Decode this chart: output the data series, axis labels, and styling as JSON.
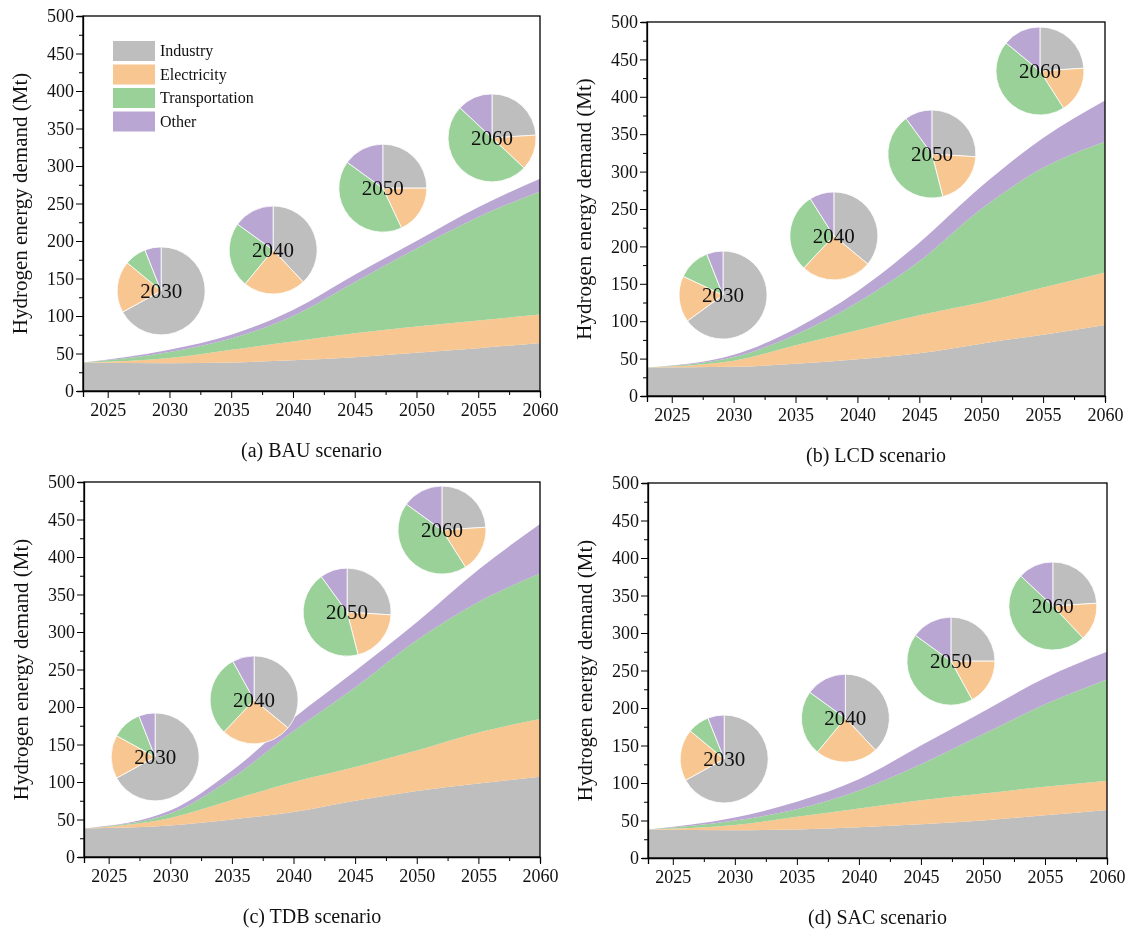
{
  "chart_data": [
    {
      "type": "area",
      "stacked": true,
      "title": "(a) BAU scenario",
      "ylabel": "Hydrogen energy demand (Mt)",
      "legend": "top left",
      "x": [
        2023,
        2030,
        2035,
        2040,
        2045,
        2050,
        2055,
        2060
      ],
      "xlim": [
        2023,
        2060
      ],
      "xticks": [
        2025,
        {
          "value": 2027.5,
          "label": null
        },
        2030,
        {
          "value": 2032.5,
          "label": null
        },
        2035,
        {
          "value": 2037.5,
          "label": null
        },
        2040,
        {
          "value": 2042.5,
          "label": null
        },
        2045,
        {
          "value": 2047.5,
          "label": null
        },
        2050,
        {
          "value": 2052.5,
          "label": null
        },
        2055,
        {
          "value": 2057.5,
          "label": null
        },
        2060
      ],
      "ylim": [
        0,
        500
      ],
      "yticks": [
        0,
        {
          "value": 25,
          "label": null
        },
        50,
        {
          "value": 75,
          "label": null
        },
        100,
        {
          "value": 125,
          "label": null
        },
        150,
        {
          "value": 175,
          "label": null
        },
        200,
        {
          "value": 225,
          "label": null
        },
        250,
        {
          "value": 275,
          "label": null
        },
        300,
        {
          "value": 325,
          "label": null
        },
        350,
        {
          "value": 375,
          "label": null
        },
        400,
        {
          "value": 425,
          "label": null
        },
        450,
        {
          "value": 475,
          "label": null
        },
        500
      ],
      "series": [
        {
          "name": "Industry",
          "color": "#bebebe",
          "values": [
            38,
            37,
            38,
            41,
            45,
            51,
            57,
            64
          ]
        },
        {
          "name": "Electricity",
          "color": "#f8c690",
          "values": [
            0,
            7,
            17,
            25,
            32,
            35,
            37,
            38
          ]
        },
        {
          "name": "Transportation",
          "color": "#99d198",
          "values": [
            0,
            8,
            15,
            34,
            68,
            104,
            138,
            164
          ]
        },
        {
          "name": "Other",
          "color": "#baa6d2",
          "values": [
            0,
            3,
            5,
            8,
            10,
            10,
            13,
            17
          ]
        }
      ]
    },
    {
      "type": "pie",
      "title": "2030",
      "categories": [
        null,
        null,
        null,
        null
      ],
      "values": [
        67,
        19,
        8,
        6
      ],
      "colors": [
        "#bebebe",
        "#f8c690",
        "#99d198",
        "#baa6d2"
      ]
    },
    {
      "type": "pie",
      "title": "2040",
      "categories": [
        null,
        null,
        null,
        null
      ],
      "values": [
        38,
        23,
        24,
        15
      ],
      "colors": [
        "#bebebe",
        "#f8c690",
        "#99d198",
        "#baa6d2"
      ]
    },
    {
      "type": "pie",
      "title": "2050",
      "categories": [
        null,
        null,
        null,
        null
      ],
      "values": [
        25,
        18,
        42,
        15
      ],
      "colors": [
        "#bebebe",
        "#f8c690",
        "#99d198",
        "#baa6d2"
      ]
    },
    {
      "type": "pie",
      "title": "2060",
      "categories": [
        null,
        null,
        null,
        null
      ],
      "values": [
        24,
        13,
        50,
        13
      ],
      "colors": [
        "#bebebe",
        "#f8c690",
        "#99d198",
        "#baa6d2"
      ]
    },
    {
      "type": "area",
      "stacked": true,
      "title": "(b) LCD scenario",
      "ylabel": "Hydrogen energy demand (Mt)",
      "x": [
        2023,
        2030,
        2035,
        2040,
        2045,
        2050,
        2055,
        2060
      ],
      "xlim": [
        2023,
        2060
      ],
      "xticks": [
        2025,
        {
          "value": 2027.5,
          "label": null
        },
        2030,
        {
          "value": 2032.5,
          "label": null
        },
        2035,
        {
          "value": 2037.5,
          "label": null
        },
        2040,
        {
          "value": 2042.5,
          "label": null
        },
        2045,
        {
          "value": 2047.5,
          "label": null
        },
        2050,
        {
          "value": 2052.5,
          "label": null
        },
        2055,
        {
          "value": 2057.5,
          "label": null
        },
        2060
      ],
      "ylim": [
        0,
        500
      ],
      "yticks": [
        0,
        {
          "value": 25,
          "label": null
        },
        50,
        {
          "value": 75,
          "label": null
        },
        100,
        {
          "value": 125,
          "label": null
        },
        150,
        {
          "value": 175,
          "label": null
        },
        200,
        {
          "value": 225,
          "label": null
        },
        250,
        {
          "value": 275,
          "label": null
        },
        300,
        {
          "value": 325,
          "label": null
        },
        350,
        {
          "value": 375,
          "label": null
        },
        400,
        {
          "value": 425,
          "label": null
        },
        450,
        {
          "value": 475,
          "label": null
        },
        500
      ],
      "series": [
        {
          "color": "#bebebe",
          "values": [
            38,
            39,
            43,
            49,
            57,
            70,
            82,
            95
          ]
        },
        {
          "color": "#f8c690",
          "values": [
            0,
            8,
            25,
            39,
            51,
            55,
            63,
            70
          ]
        },
        {
          "color": "#99d198",
          "values": [
            0,
            5,
            14,
            37,
            72,
            125,
            160,
            175
          ]
        },
        {
          "color": "#baa6d2",
          "values": [
            0,
            3,
            8,
            15,
            25,
            30,
            40,
            55
          ]
        }
      ]
    },
    {
      "type": "pie",
      "title": "2030",
      "categories": [
        null,
        null,
        null,
        null
      ],
      "values": [
        65,
        17,
        12,
        6
      ],
      "colors": [
        "#bebebe",
        "#f8c690",
        "#99d198",
        "#baa6d2"
      ]
    },
    {
      "type": "pie",
      "title": "2040",
      "categories": [
        null,
        null,
        null,
        null
      ],
      "values": [
        36,
        26,
        29,
        9
      ],
      "colors": [
        "#bebebe",
        "#f8c690",
        "#99d198",
        "#baa6d2"
      ]
    },
    {
      "type": "pie",
      "title": "2050",
      "categories": [
        null,
        null,
        null,
        null
      ],
      "values": [
        26,
        20,
        44,
        10
      ],
      "colors": [
        "#bebebe",
        "#f8c690",
        "#99d198",
        "#baa6d2"
      ]
    },
    {
      "type": "pie",
      "title": "2060",
      "categories": [
        null,
        null,
        null,
        null
      ],
      "values": [
        24,
        17,
        45,
        14
      ],
      "colors": [
        "#bebebe",
        "#f8c690",
        "#99d198",
        "#baa6d2"
      ]
    },
    {
      "type": "area",
      "stacked": true,
      "title": "(c) TDB scenario",
      "ylabel": "Hydrogen energy demand (Mt)",
      "x": [
        2023,
        2030,
        2035,
        2040,
        2045,
        2050,
        2055,
        2060
      ],
      "xlim": [
        2023,
        2060
      ],
      "xticks": [
        2025,
        {
          "value": 2027.5,
          "label": null
        },
        2030,
        {
          "value": 2032.5,
          "label": null
        },
        2035,
        {
          "value": 2037.5,
          "label": null
        },
        2040,
        {
          "value": 2042.5,
          "label": null
        },
        2045,
        {
          "value": 2047.5,
          "label": null
        },
        2050,
        {
          "value": 2052.5,
          "label": null
        },
        2055,
        {
          "value": 2057.5,
          "label": null
        },
        2060
      ],
      "ylim": [
        0,
        500
      ],
      "yticks": [
        0,
        {
          "value": 25,
          "label": null
        },
        50,
        {
          "value": 75,
          "label": null
        },
        100,
        {
          "value": 125,
          "label": null
        },
        150,
        {
          "value": 175,
          "label": null
        },
        200,
        {
          "value": 225,
          "label": null
        },
        250,
        {
          "value": 275,
          "label": null
        },
        300,
        {
          "value": 325,
          "label": null
        },
        350,
        {
          "value": 375,
          "label": null
        },
        400,
        {
          "value": 425,
          "label": null
        },
        450,
        {
          "value": 475,
          "label": null
        },
        500
      ],
      "series": [
        {
          "color": "#bebebe",
          "values": [
            38,
            42,
            50,
            60,
            75,
            88,
            98,
            107
          ]
        },
        {
          "color": "#f8c690",
          "values": [
            0,
            10,
            26,
            40,
            45,
            54,
            68,
            77
          ]
        },
        {
          "color": "#99d198",
          "values": [
            0,
            6,
            29,
            68,
            106,
            147,
            174,
            194
          ]
        },
        {
          "color": "#baa6d2",
          "values": [
            0,
            4,
            10,
            17,
            22,
            24,
            43,
            66
          ]
        }
      ]
    },
    {
      "type": "pie",
      "title": "2030",
      "categories": [
        null,
        null,
        null,
        null
      ],
      "values": [
        67,
        16,
        11,
        6
      ],
      "colors": [
        "#bebebe",
        "#f8c690",
        "#99d198",
        "#baa6d2"
      ]
    },
    {
      "type": "pie",
      "title": "2040",
      "categories": [
        null,
        null,
        null,
        null
      ],
      "values": [
        36,
        26,
        30,
        8
      ],
      "colors": [
        "#bebebe",
        "#f8c690",
        "#99d198",
        "#baa6d2"
      ]
    },
    {
      "type": "pie",
      "title": "2050",
      "categories": [
        null,
        null,
        null,
        null
      ],
      "values": [
        26,
        20,
        44,
        10
      ],
      "colors": [
        "#bebebe",
        "#f8c690",
        "#99d198",
        "#baa6d2"
      ]
    },
    {
      "type": "pie",
      "title": "2060",
      "categories": [
        null,
        null,
        null,
        null
      ],
      "values": [
        24,
        17,
        44,
        15
      ],
      "colors": [
        "#bebebe",
        "#f8c690",
        "#99d198",
        "#baa6d2"
      ]
    },
    {
      "type": "area",
      "stacked": true,
      "title": "(d) SAC scenario",
      "ylabel": "Hydrogen energy demand (Mt)",
      "x": [
        2023,
        2030,
        2035,
        2040,
        2045,
        2050,
        2055,
        2060
      ],
      "xlim": [
        2023,
        2060
      ],
      "xticks": [
        2025,
        {
          "value": 2027.5,
          "label": null
        },
        2030,
        {
          "value": 2032.5,
          "label": null
        },
        2035,
        {
          "value": 2037.5,
          "label": null
        },
        2040,
        {
          "value": 2042.5,
          "label": null
        },
        2045,
        {
          "value": 2047.5,
          "label": null
        },
        2050,
        {
          "value": 2052.5,
          "label": null
        },
        2055,
        {
          "value": 2057.5,
          "label": null
        },
        2060
      ],
      "ylim": [
        0,
        500
      ],
      "yticks": [
        0,
        {
          "value": 25,
          "label": null
        },
        50,
        {
          "value": 75,
          "label": null
        },
        100,
        {
          "value": 125,
          "label": null
        },
        150,
        {
          "value": 175,
          "label": null
        },
        200,
        {
          "value": 225,
          "label": null
        },
        250,
        {
          "value": 275,
          "label": null
        },
        300,
        {
          "value": 325,
          "label": null
        },
        350,
        {
          "value": 375,
          "label": null
        },
        400,
        {
          "value": 425,
          "label": null
        },
        450,
        {
          "value": 475,
          "label": null
        },
        500
      ],
      "series": [
        {
          "color": "#bebebe",
          "values": [
            38,
            37,
            38,
            41,
            45,
            50,
            57,
            64
          ]
        },
        {
          "color": "#f8c690",
          "values": [
            0,
            7,
            17,
            25,
            32,
            36,
            38,
            39
          ]
        },
        {
          "color": "#99d198",
          "values": [
            0,
            6,
            10,
            24,
            48,
            79,
            110,
            135
          ]
        },
        {
          "color": "#baa6d2",
          "values": [
            0,
            4,
            10,
            15,
            25,
            30,
            35,
            37
          ]
        }
      ]
    },
    {
      "type": "pie",
      "title": "2030",
      "categories": [
        null,
        null,
        null,
        null
      ],
      "values": [
        67,
        19,
        8,
        6
      ],
      "colors": [
        "#bebebe",
        "#f8c690",
        "#99d198",
        "#baa6d2"
      ]
    },
    {
      "type": "pie",
      "title": "2040",
      "categories": [
        null,
        null,
        null,
        null
      ],
      "values": [
        38,
        23,
        24,
        15
      ],
      "colors": [
        "#bebebe",
        "#f8c690",
        "#99d198",
        "#baa6d2"
      ]
    },
    {
      "type": "pie",
      "title": "2050",
      "categories": [
        null,
        null,
        null,
        null
      ],
      "values": [
        25,
        17,
        43,
        15
      ],
      "colors": [
        "#bebebe",
        "#f8c690",
        "#99d198",
        "#baa6d2"
      ]
    },
    {
      "type": "pie",
      "title": "2060",
      "categories": [
        null,
        null,
        null,
        null
      ],
      "values": [
        24,
        14,
        49,
        13
      ],
      "colors": [
        "#bebebe",
        "#f8c690",
        "#99d198",
        "#baa6d2"
      ]
    }
  ]
}
